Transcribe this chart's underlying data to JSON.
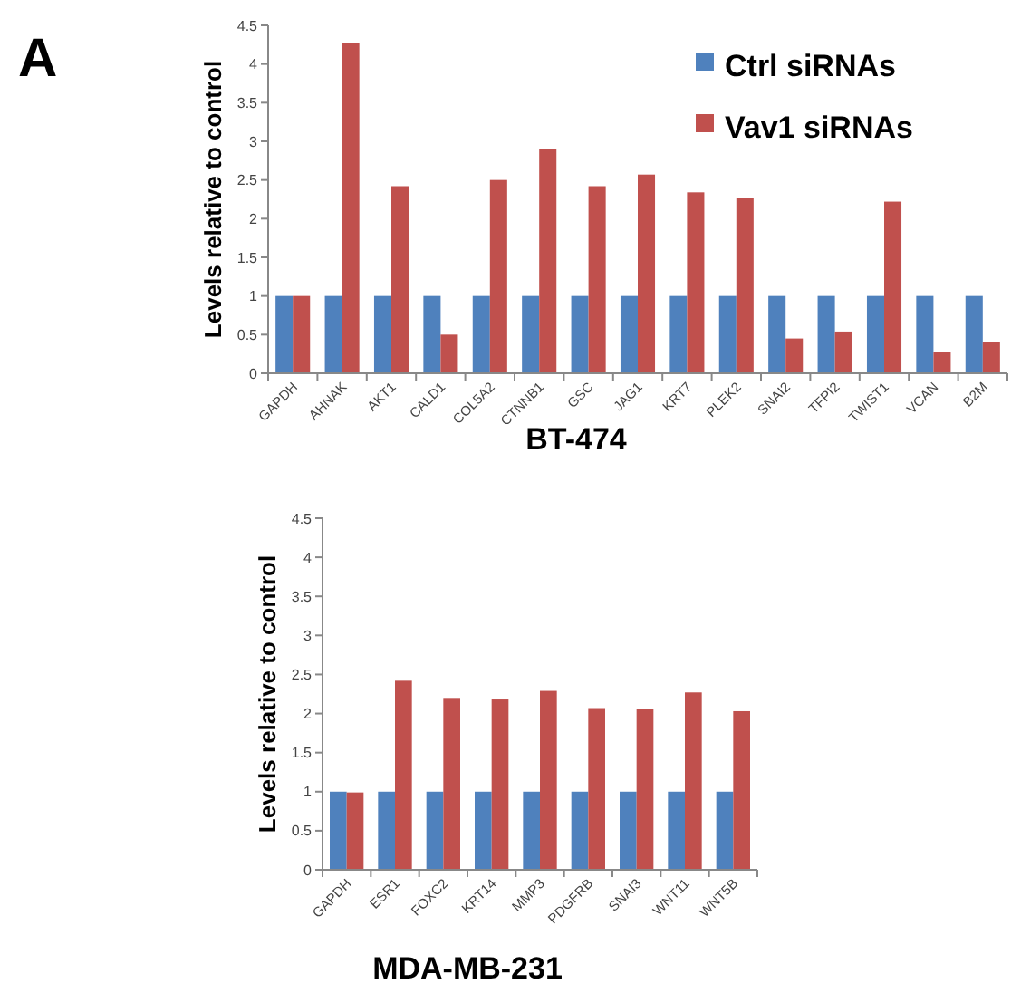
{
  "chart_data": [
    {
      "type": "bar",
      "title": "BT-474",
      "ylabel": "Levels relative to control",
      "annotations": [
        "A"
      ],
      "categories": [
        "GAPDH",
        "AHNAK",
        "AKT1",
        "CALD1",
        "COL5A2",
        "CTNNB1",
        "GSC",
        "JAG1",
        "KRT7",
        "PLEK2",
        "SNAI2",
        "TFPI2",
        "TWIST1",
        "VCAN",
        "B2M"
      ],
      "series": [
        {
          "name": "Ctrl siRNAs",
          "color": "#4f81bd",
          "values": [
            1,
            1,
            1,
            1,
            1,
            1,
            1,
            1,
            1,
            1,
            1,
            1,
            1,
            1,
            1
          ]
        },
        {
          "name": "Vav1 siRNAs",
          "color": "#c0504d",
          "values": [
            1,
            4.27,
            2.42,
            0.5,
            2.5,
            2.9,
            2.42,
            2.57,
            2.34,
            2.27,
            0.45,
            0.54,
            2.22,
            0.27,
            0.4
          ]
        }
      ],
      "ylim": [
        0,
        4.5
      ],
      "yticks": [
        0,
        0.5,
        1,
        1.5,
        2,
        2.5,
        3,
        3.5,
        4,
        4.5
      ],
      "legend": "top right",
      "grid": false
    },
    {
      "type": "bar",
      "title": "MDA-MB-231",
      "ylabel": "Levels relative to control",
      "categories": [
        "GAPDH",
        "ESR1",
        "FOXC2",
        "KRT14",
        "MMP3",
        "PDGFRB",
        "SNAI3",
        "WNT11",
        "WNT5B"
      ],
      "series": [
        {
          "color": "#4f81bd",
          "values": [
            1,
            1,
            1,
            1,
            1,
            1,
            1,
            1,
            1
          ]
        },
        {
          "color": "#c0504d",
          "values": [
            0.99,
            2.42,
            2.2,
            2.18,
            2.29,
            2.07,
            2.06,
            2.27,
            2.03
          ]
        }
      ],
      "ylim": [
        0,
        4.5
      ],
      "yticks": [
        0,
        0.5,
        1,
        1.5,
        2,
        2.5,
        3,
        3.5,
        4,
        4.5
      ],
      "legend": false,
      "grid": false
    }
  ]
}
